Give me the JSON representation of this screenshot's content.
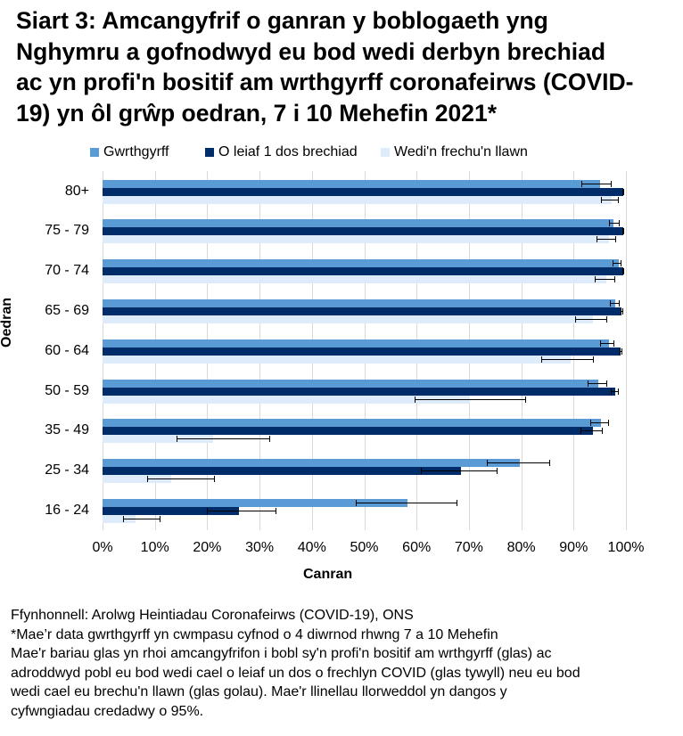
{
  "title": "Siart 3: Amcangyfrif o ganran y boblogaeth yng Nghymru a gofnodwyd eu bod wedi derbyn brechiad ac yn profi'n bositif am wrthgyrff coronafeirws (COVID-19) yn ôl grŵp oedran, 7 i 10 Mehefin 2021*",
  "title_lines": [
    "Siart 3: Amcangyfrif o ganran y boblogaeth yng",
    "Nghymru a gofnodwyd eu bod wedi derbyn brechiad",
    "ac yn profi'n bositif am wrthgyrff coronafeirws (COVID-",
    "19) yn ôl grŵp oedran, 7 i 10 Mehefin 2021*"
  ],
  "legend": [
    {
      "label": "Gwrthgyrff",
      "color": "#5b9bd5"
    },
    {
      "label": "O leiaf 1 dos brechiad",
      "color": "#002d6a"
    },
    {
      "label": "Wedi'n frechu'n llawn",
      "color": "#ddebfb"
    }
  ],
  "axis": {
    "y_title": "Oedran",
    "x_title": "Canran",
    "x_ticks": [
      "0%",
      "10%",
      "20%",
      "30%",
      "40%",
      "50%",
      "60%",
      "70%",
      "80%",
      "90%",
      "100%"
    ]
  },
  "chart_data": {
    "type": "bar",
    "orientation": "horizontal",
    "title": "Siart 3: Amcangyfrif o ganran y boblogaeth yng Nghymru a gofnodwyd eu bod wedi derbyn brechiad ac yn profi'n bositif am wrthgyrff coronafeirws (COVID-19) yn ôl grŵp oedran, 7 i 10 Mehefin 2021*",
    "xlabel": "Canran",
    "ylabel": "Oedran",
    "xlim": [
      0,
      100
    ],
    "grid": true,
    "legend_position": "top",
    "categories": [
      "80+",
      "75 - 79",
      "70 - 74",
      "65 - 69",
      "60 - 64",
      "50 - 59",
      "35 - 49",
      "25 - 34",
      "16 - 24"
    ],
    "series": [
      {
        "name": "Gwrthgyrff",
        "color": "#5b9bd5",
        "values": [
          95.0,
          97.7,
          98.6,
          98.0,
          96.7,
          94.8,
          95.2,
          79.8,
          58.3
        ],
        "ci_lower": [
          91.5,
          96.7,
          97.5,
          97.0,
          95.1,
          92.6,
          93.2,
          73.4,
          48.4
        ],
        "ci_upper": [
          97.2,
          98.8,
          99.1,
          98.8,
          97.8,
          96.5,
          96.7,
          85.5,
          67.8
        ]
      },
      {
        "name": "O leiaf 1 dos brechiad",
        "color": "#002d6a",
        "values": [
          99.5,
          99.5,
          99.5,
          99.2,
          99.0,
          98.0,
          93.7,
          68.4,
          26.0
        ],
        "ci_lower": [
          99.3,
          99.3,
          99.3,
          98.9,
          98.8,
          97.1,
          91.3,
          60.8,
          19.9
        ],
        "ci_upper": [
          99.7,
          99.7,
          99.7,
          99.5,
          99.3,
          98.6,
          95.5,
          75.4,
          33.2
        ]
      },
      {
        "name": "Wedi'n frechu'n llawn",
        "color": "#ddebfb",
        "values": [
          97.2,
          96.7,
          96.2,
          93.7,
          89.4,
          70.2,
          21.1,
          13.2,
          6.3
        ],
        "ci_lower": [
          95.2,
          94.4,
          94.0,
          90.3,
          83.9,
          59.6,
          14.2,
          8.5,
          3.9
        ],
        "ci_upper": [
          98.6,
          98.2,
          98.0,
          96.5,
          93.9,
          81.0,
          32.0,
          21.5,
          11.0
        ]
      }
    ]
  },
  "notes": [
    "Ffynhonnell: Arolwg Heintiadau Coronafeirws (COVID-19), ONS",
    "*Mae’r data gwrthgyrff yn cwmpasu cyfnod o 4 diwrnod rhwng 7 a 10 Mehefin",
    "Mae'r bariau glas yn rhoi amcangyfrifon i bobl sy'n profi'n bositif am wrthgyrff (glas) ac",
    "adroddwyd pobl eu bod wedi cael o leiaf un dos o frechlyn COVID (glas tywyll) neu eu bod",
    "wedi cael eu brechu'n llawn (glas golau).  Mae'r llinellau llorweddol yn dangos y",
    "cyfwngiadau credadwy o 95%."
  ]
}
